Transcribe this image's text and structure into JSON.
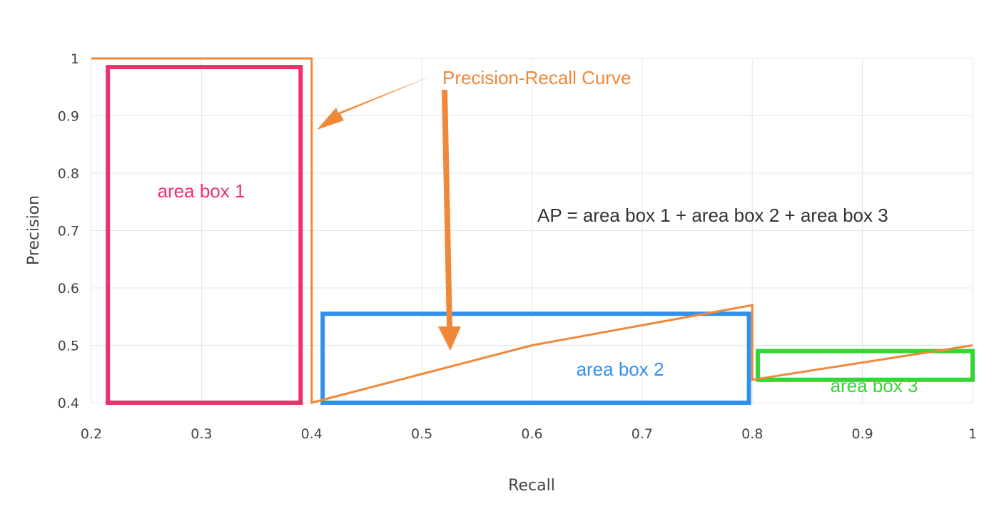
{
  "chart_data": {
    "type": "line",
    "title": "",
    "xlabel": "Recall",
    "ylabel": "Precision",
    "xlim": [
      0.2,
      1.0
    ],
    "ylim": [
      0.4,
      1.0
    ],
    "x_ticks": [
      "0.2",
      "0.3",
      "0.4",
      "0.5",
      "0.6",
      "0.7",
      "0.8",
      "0.9",
      "1"
    ],
    "y_ticks": [
      "0.4",
      "0.5",
      "0.6",
      "0.7",
      "0.8",
      "0.9",
      "1"
    ],
    "grid": true,
    "series": [
      {
        "color": "#f0883a",
        "x": [
          0.2,
          0.4,
          0.4,
          0.6,
          0.8,
          0.8,
          1.0
        ],
        "y": [
          1.0,
          1.0,
          0.4,
          0.5,
          0.57,
          0.44,
          0.5
        ]
      }
    ],
    "boxes": [
      {
        "label": "area box 1",
        "color": "#f0306a",
        "x0": 0.215,
        "x1": 0.39,
        "y0": 0.4,
        "y1": 0.985
      },
      {
        "label": "area box 2",
        "color": "#3090f0",
        "x0": 0.41,
        "x1": 0.797,
        "y0": 0.4,
        "y1": 0.555
      },
      {
        "label": "area box 3",
        "color": "#33d633",
        "x0": 0.805,
        "x1": 1.0,
        "y0": 0.44,
        "y1": 0.49
      }
    ],
    "annotations": {
      "curve_label": "Precision-Recall Curve",
      "curve_label_color": "#f0883a",
      "formula": "AP = area box 1 + area box 2 + area box 3"
    }
  }
}
